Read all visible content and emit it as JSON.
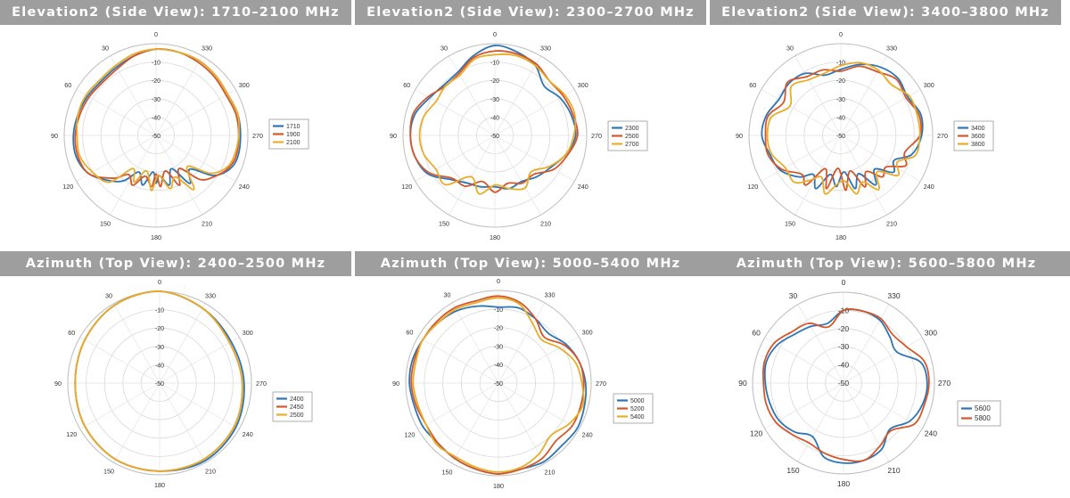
{
  "chart_data": [
    {
      "type": "polar-line",
      "title": "Elevation2 (Side View): 1710–2100 MHz",
      "r_ticks": [
        -10,
        -20,
        -30,
        -40,
        -50
      ],
      "angle_ticks": [
        0,
        30,
        60,
        90,
        120,
        150,
        180,
        210,
        240,
        270,
        300,
        330
      ],
      "angle_direction": "counterclockwise, 0 at top",
      "legend_position": "right",
      "series": [
        {
          "name": "1710",
          "color": "#2e75b6",
          "angles": [
            0,
            15,
            30,
            45,
            60,
            75,
            90,
            105,
            120,
            135,
            145,
            155,
            165,
            175,
            180,
            185,
            195,
            205,
            215,
            225,
            235,
            245,
            255,
            270,
            285,
            300,
            315,
            330,
            345
          ],
          "values": [
            -3,
            -5,
            -7,
            -8,
            -7,
            -6,
            -5,
            -5,
            -8,
            -15,
            -20,
            -28,
            -22,
            -30,
            -24,
            -28,
            -22,
            -30,
            -18,
            -24,
            -12,
            -6,
            -4,
            -4,
            -4,
            -5,
            -4,
            -3,
            -3
          ]
        },
        {
          "name": "1900",
          "color": "#d4572a",
          "angles": [
            0,
            15,
            30,
            45,
            60,
            75,
            90,
            105,
            120,
            135,
            145,
            155,
            165,
            175,
            180,
            185,
            195,
            205,
            215,
            225,
            235,
            245,
            255,
            270,
            285,
            300,
            315,
            330,
            345
          ],
          "values": [
            -3,
            -5,
            -8,
            -9,
            -8,
            -7,
            -6,
            -6,
            -8,
            -17,
            -24,
            -20,
            -27,
            -22,
            -29,
            -22,
            -30,
            -20,
            -28,
            -16,
            -11,
            -7,
            -5,
            -5,
            -5,
            -6,
            -5,
            -4,
            -3
          ]
        },
        {
          "name": "2100",
          "color": "#e8ad2a",
          "angles": [
            0,
            15,
            30,
            45,
            60,
            75,
            90,
            105,
            120,
            135,
            145,
            155,
            165,
            175,
            180,
            185,
            195,
            205,
            215,
            225,
            235,
            245,
            255,
            270,
            285,
            300,
            315,
            330,
            345
          ],
          "values": [
            -3,
            -4,
            -6,
            -7,
            -6,
            -6,
            -7,
            -7,
            -10,
            -14,
            -28,
            -22,
            -30,
            -20,
            -26,
            -28,
            -20,
            -25,
            -14,
            -26,
            -14,
            -8,
            -6,
            -5,
            -4,
            -5,
            -4,
            -3,
            -3
          ]
        }
      ]
    },
    {
      "type": "polar-line",
      "title": "Elevation2 (Side View): 2300–2700 MHz",
      "r_ticks": [
        -10,
        -20,
        -30,
        -40,
        -50
      ],
      "angle_ticks": [
        0,
        30,
        60,
        90,
        120,
        150,
        180,
        210,
        240,
        270,
        300,
        330
      ],
      "angle_direction": "counterclockwise, 0 at top",
      "legend_position": "right",
      "series": [
        {
          "name": "2300",
          "color": "#2e75b6",
          "angles": [
            0,
            15,
            30,
            45,
            60,
            75,
            90,
            105,
            120,
            135,
            150,
            165,
            180,
            195,
            210,
            225,
            240,
            255,
            270,
            285,
            300,
            315,
            330,
            345
          ],
          "values": [
            -1,
            -5,
            -10,
            -11,
            -9,
            -5,
            -4,
            -5,
            -8,
            -16,
            -20,
            -21,
            -22,
            -20,
            -21,
            -18,
            -15,
            -10,
            -6,
            -7,
            -9,
            -12,
            -6,
            -3
          ]
        },
        {
          "name": "2500",
          "color": "#d4572a",
          "angles": [
            0,
            15,
            30,
            45,
            60,
            75,
            90,
            105,
            120,
            135,
            150,
            165,
            180,
            195,
            210,
            225,
            240,
            255,
            270,
            285,
            300,
            315,
            330,
            345
          ],
          "values": [
            -4,
            -6,
            -11,
            -12,
            -8,
            -4,
            -4,
            -5,
            -9,
            -17,
            -18,
            -24,
            -19,
            -23,
            -20,
            -20,
            -13,
            -9,
            -5,
            -6,
            -7,
            -8,
            -5,
            -4
          ]
        },
        {
          "name": "2700",
          "color": "#e8ad2a",
          "angles": [
            0,
            15,
            30,
            45,
            60,
            75,
            90,
            105,
            120,
            135,
            150,
            165,
            180,
            195,
            210,
            225,
            240,
            255,
            270,
            285,
            300,
            315,
            330,
            345
          ],
          "values": [
            -6,
            -7,
            -12,
            -12,
            -13,
            -10,
            -9,
            -10,
            -13,
            -12,
            -24,
            -17,
            -23,
            -20,
            -17,
            -22,
            -16,
            -10,
            -7,
            -5,
            -6,
            -8,
            -6,
            -5
          ]
        }
      ]
    },
    {
      "type": "polar-line",
      "title": "Elevation2 (Side View): 3400–3800 MHz",
      "r_ticks": [
        -10,
        -20,
        -30,
        -40,
        -50
      ],
      "angle_ticks": [
        0,
        30,
        60,
        90,
        120,
        150,
        180,
        210,
        240,
        270,
        300,
        330
      ],
      "angle_direction": "counterclockwise, 0 at top",
      "legend_position": "right",
      "series": [
        {
          "name": "3400",
          "color": "#2e75b6",
          "angles": [
            0,
            15,
            30,
            45,
            60,
            75,
            90,
            105,
            120,
            135,
            145,
            155,
            165,
            175,
            185,
            195,
            205,
            215,
            225,
            235,
            245,
            255,
            270,
            285,
            300,
            315,
            330,
            345
          ],
          "values": [
            -14,
            -16,
            -11,
            -10,
            -11,
            -8,
            -7,
            -10,
            -12,
            -18,
            -24,
            -18,
            -28,
            -22,
            -30,
            -20,
            -27,
            -17,
            -24,
            -15,
            -18,
            -10,
            -6,
            -5,
            -8,
            -6,
            -7,
            -10
          ]
        },
        {
          "name": "3600",
          "color": "#d4572a",
          "angles": [
            0,
            15,
            30,
            45,
            60,
            75,
            90,
            105,
            120,
            135,
            145,
            155,
            165,
            175,
            185,
            195,
            205,
            215,
            225,
            235,
            245,
            255,
            270,
            285,
            300,
            315,
            330,
            345
          ],
          "values": [
            -15,
            -13,
            -13,
            -9,
            -14,
            -9,
            -9,
            -9,
            -13,
            -20,
            -17,
            -30,
            -20,
            -32,
            -20,
            -30,
            -19,
            -26,
            -18,
            -20,
            -11,
            -14,
            -7,
            -6,
            -9,
            -7,
            -10,
            -11
          ]
        },
        {
          "name": "3800",
          "color": "#e8ad2a",
          "angles": [
            0,
            15,
            30,
            45,
            60,
            75,
            90,
            105,
            120,
            135,
            145,
            155,
            165,
            175,
            185,
            195,
            205,
            215,
            225,
            235,
            245,
            255,
            270,
            285,
            300,
            315,
            330,
            345
          ],
          "values": [
            -12,
            -15,
            -15,
            -12,
            -18,
            -11,
            -10,
            -11,
            -15,
            -14,
            -20,
            -25,
            -17,
            -23,
            -25,
            -17,
            -22,
            -14,
            -22,
            -12,
            -16,
            -8,
            -7,
            -7,
            -7,
            -11,
            -9,
            -9
          ]
        }
      ]
    },
    {
      "type": "polar-line",
      "title": "Azimuth (Top View): 2400–2500 MHz",
      "r_ticks": [
        -10,
        -20,
        -30,
        -40,
        -50
      ],
      "angle_ticks": [
        0,
        30,
        60,
        90,
        120,
        150,
        180,
        210,
        240,
        270,
        300,
        330
      ],
      "angle_direction": "counterclockwise, 0 at top",
      "legend_position": "right",
      "series": [
        {
          "name": "2400",
          "color": "#2e75b6",
          "angles": [
            0,
            30,
            60,
            90,
            120,
            150,
            180,
            210,
            240,
            270,
            300,
            330
          ],
          "values": [
            0,
            -1,
            -3,
            -4,
            -3,
            -2,
            -2,
            -1,
            -2,
            -4,
            -5,
            -3
          ]
        },
        {
          "name": "2450",
          "color": "#d4572a",
          "angles": [
            0,
            30,
            60,
            90,
            120,
            150,
            180,
            210,
            240,
            270,
            300,
            330
          ],
          "values": [
            0,
            -1,
            -3,
            -4,
            -3,
            -2,
            -2,
            -2,
            -3,
            -5,
            -6,
            -3
          ]
        },
        {
          "name": "2500",
          "color": "#e8ad2a",
          "angles": [
            0,
            30,
            60,
            90,
            120,
            150,
            180,
            210,
            240,
            270,
            300,
            330
          ],
          "values": [
            0,
            -1,
            -3,
            -4,
            -3,
            -2,
            -2,
            -2,
            -3,
            -5,
            -6,
            -3
          ]
        }
      ]
    },
    {
      "type": "polar-line",
      "title": "Azimuth (Top View): 5000–5400 MHz",
      "r_ticks": [
        -10,
        -20,
        -30,
        -40,
        -50
      ],
      "angle_ticks": [
        0,
        30,
        60,
        90,
        120,
        150,
        180,
        210,
        240,
        270,
        300,
        330
      ],
      "angle_direction": "counterclockwise, 0 at top",
      "legend_position": "right",
      "series": [
        {
          "name": "5000",
          "color": "#2e75b6",
          "angles": [
            0,
            15,
            30,
            45,
            60,
            75,
            90,
            105,
            120,
            135,
            150,
            165,
            180,
            195,
            210,
            225,
            240,
            255,
            270,
            285,
            300,
            315,
            330,
            345
          ],
          "values": [
            -9,
            -7,
            -5,
            -4,
            -3,
            -2,
            -2,
            -3,
            -3,
            -4,
            -3,
            -2,
            -1,
            -2,
            -1,
            -2,
            -1,
            -2,
            -3,
            -5,
            -8,
            -12,
            -10,
            -8
          ]
        },
        {
          "name": "5200",
          "color": "#d4572a",
          "angles": [
            0,
            15,
            30,
            45,
            60,
            75,
            90,
            105,
            120,
            135,
            150,
            165,
            180,
            195,
            210,
            225,
            240,
            255,
            270,
            285,
            300,
            315,
            330,
            345
          ],
          "values": [
            -3,
            -4,
            -3,
            -3,
            -3,
            -3,
            -3,
            -4,
            -5,
            -4,
            -3,
            -2,
            -1,
            -2,
            -3,
            -6,
            -4,
            -4,
            -4,
            -5,
            -9,
            -15,
            -10,
            -5
          ]
        },
        {
          "name": "5400",
          "color": "#e8ad2a",
          "angles": [
            0,
            15,
            30,
            45,
            60,
            75,
            90,
            105,
            120,
            135,
            150,
            165,
            180,
            195,
            210,
            225,
            240,
            255,
            270,
            285,
            300,
            315,
            330,
            345
          ],
          "values": [
            -4,
            -5,
            -4,
            -4,
            -3,
            -4,
            -4,
            -5,
            -5,
            -3,
            -4,
            -3,
            -2,
            -3,
            -6,
            -10,
            -6,
            -3,
            -5,
            -7,
            -12,
            -17,
            -13,
            -6
          ]
        }
      ]
    },
    {
      "type": "polar-line",
      "title": "Azimuth (Top View): 5600–5800 MHz",
      "r_ticks": [
        -10,
        -20,
        -30,
        -40,
        -50
      ],
      "angle_ticks": [
        0,
        30,
        60,
        90,
        120,
        150,
        180,
        210,
        240,
        270,
        300,
        330
      ],
      "angle_direction": "counterclockwise, 0 at top",
      "legend_position": "right",
      "series": [
        {
          "name": "5600",
          "color": "#2e75b6",
          "angles": [
            0,
            15,
            30,
            45,
            60,
            75,
            90,
            105,
            120,
            135,
            150,
            165,
            180,
            195,
            210,
            225,
            240,
            255,
            270,
            285,
            300,
            315,
            330,
            345
          ],
          "values": [
            -10,
            -16,
            -14,
            -12,
            -8,
            -6,
            -7,
            -8,
            -9,
            -12,
            -16,
            -8,
            -6,
            -6,
            -8,
            -14,
            -8,
            -5,
            -4,
            -6,
            -16,
            -14,
            -10,
            -9
          ]
        },
        {
          "name": "5800",
          "color": "#d4572a",
          "angles": [
            0,
            15,
            30,
            45,
            60,
            75,
            90,
            105,
            120,
            135,
            150,
            165,
            180,
            195,
            210,
            225,
            240,
            255,
            270,
            285,
            300,
            315,
            330,
            345
          ],
          "values": [
            -10,
            -18,
            -12,
            -10,
            -6,
            -5,
            -6,
            -6,
            -7,
            -10,
            -12,
            -10,
            -8,
            -6,
            -10,
            -13,
            -5,
            -4,
            -3,
            -4,
            -10,
            -12,
            -9,
            -9
          ]
        }
      ]
    }
  ]
}
